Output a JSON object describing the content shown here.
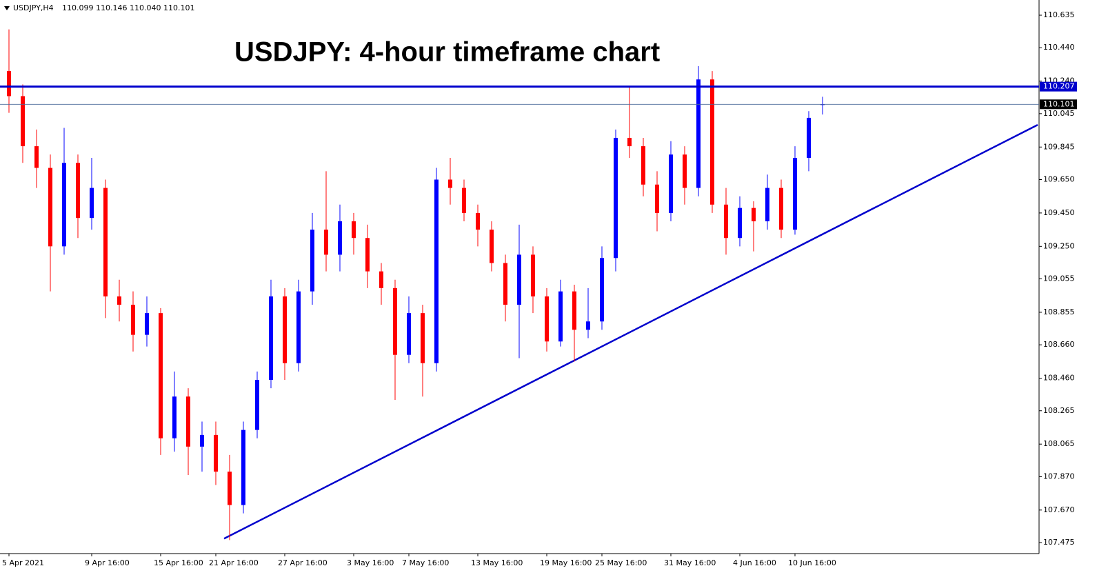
{
  "header": {
    "symbol": "USDJPY,H4",
    "quote": "110.099 110.146 110.040 110.101"
  },
  "chart_data": {
    "type": "candlestick",
    "title": "USDJPY: 4-hour timeframe chart",
    "categories": [
      "5 Apr 2021",
      null,
      null,
      null,
      null,
      null,
      "9 Apr 16:00",
      null,
      null,
      null,
      null,
      "15 Apr 16:00",
      null,
      null,
      null,
      "21 Apr 16:00",
      null,
      null,
      null,
      null,
      "27 Apr 16:00",
      null,
      null,
      null,
      null,
      "3 May 16:00",
      null,
      null,
      null,
      "7 May 16:00",
      null,
      null,
      null,
      null,
      "13 May 16:00",
      null,
      null,
      null,
      null,
      "19 May 16:00",
      null,
      null,
      null,
      "25 May 16:00",
      null,
      null,
      null,
      null,
      "31 May 16:00",
      null,
      null,
      null,
      null,
      "4 Jun 16:00",
      null,
      null,
      null,
      "10 Jun 16:00",
      null,
      null
    ],
    "open": [
      110.3,
      110.15,
      109.85,
      109.72,
      109.25,
      109.75,
      109.42,
      109.6,
      108.95,
      108.9,
      108.72,
      108.85,
      108.1,
      108.35,
      108.05,
      108.12,
      107.9,
      107.7,
      108.15,
      108.45,
      108.95,
      108.55,
      108.98,
      109.35,
      109.2,
      109.4,
      109.3,
      109.1,
      109.0,
      108.6,
      108.85,
      108.55,
      109.65,
      109.6,
      109.45,
      109.35,
      109.15,
      108.9,
      109.2,
      108.95,
      108.68,
      108.98,
      108.75,
      108.8,
      109.18,
      109.9,
      109.85,
      109.62,
      109.45,
      109.8,
      109.6,
      110.25,
      109.5,
      109.3,
      109.48,
      109.4,
      109.6,
      109.35,
      109.78,
      110.099
    ],
    "high": [
      110.55,
      110.22,
      109.95,
      109.8,
      109.96,
      109.8,
      109.78,
      109.65,
      109.05,
      108.98,
      108.95,
      108.88,
      108.5,
      108.4,
      108.2,
      108.2,
      108.0,
      108.2,
      108.5,
      109.05,
      109.0,
      109.05,
      109.45,
      109.7,
      109.5,
      109.45,
      109.38,
      109.15,
      109.05,
      108.95,
      108.9,
      109.72,
      109.78,
      109.65,
      109.5,
      109.4,
      109.2,
      109.38,
      109.25,
      109.0,
      109.05,
      109.02,
      109.0,
      109.25,
      109.95,
      110.207,
      109.9,
      109.7,
      109.88,
      109.85,
      110.33,
      110.3,
      109.6,
      109.55,
      109.52,
      109.68,
      109.65,
      109.85,
      110.06,
      110.146
    ],
    "low": [
      110.05,
      109.75,
      109.6,
      108.98,
      109.2,
      109.3,
      109.35,
      108.82,
      108.8,
      108.62,
      108.65,
      108.0,
      108.02,
      107.88,
      107.9,
      107.82,
      107.49,
      107.65,
      108.1,
      108.4,
      108.45,
      108.5,
      108.9,
      109.1,
      109.1,
      109.2,
      109.0,
      108.9,
      108.33,
      108.55,
      108.35,
      108.5,
      109.5,
      109.4,
      109.25,
      109.1,
      108.8,
      108.58,
      108.85,
      108.62,
      108.65,
      108.56,
      108.7,
      108.75,
      109.1,
      109.78,
      109.55,
      109.34,
      109.4,
      109.5,
      109.55,
      109.45,
      109.2,
      109.25,
      109.22,
      109.35,
      109.3,
      109.32,
      109.7,
      110.04
    ],
    "close": [
      110.15,
      109.85,
      109.72,
      109.25,
      109.75,
      109.42,
      109.6,
      108.95,
      108.9,
      108.72,
      108.85,
      108.1,
      108.35,
      108.05,
      108.12,
      107.9,
      107.7,
      108.15,
      108.45,
      108.95,
      108.55,
      108.98,
      109.35,
      109.2,
      109.4,
      109.3,
      109.1,
      109.0,
      108.6,
      108.85,
      108.55,
      109.65,
      109.6,
      109.45,
      109.35,
      109.15,
      108.9,
      109.2,
      108.95,
      108.68,
      108.98,
      108.75,
      108.8,
      109.18,
      109.9,
      109.85,
      109.62,
      109.45,
      109.8,
      109.6,
      110.25,
      109.5,
      109.3,
      109.48,
      109.4,
      109.6,
      109.35,
      109.78,
      110.02,
      110.101
    ],
    "up_color": "#0000ff",
    "down_color": "#ff0000",
    "ylim": [
      107.409,
      110.726
    ],
    "yticks": [
      110.635,
      {
        "value": 110.44,
        "label": "110.440"
      },
      {
        "value": 110.24,
        "label": "110.240"
      },
      110.045,
      109.845,
      {
        "value": 109.65,
        "label": "109.650"
      },
      {
        "value": 109.45,
        "label": "109.450"
      },
      {
        "value": 109.25,
        "label": "109.250"
      },
      109.055,
      108.855,
      {
        "value": 108.66,
        "label": "108.660"
      },
      {
        "value": 108.46,
        "label": "108.460"
      },
      108.265,
      108.065,
      {
        "value": 107.87,
        "label": "107.870"
      },
      {
        "value": 107.67,
        "label": "107.670"
      },
      107.475
    ],
    "price_lines": [
      {
        "value": 110.207,
        "color": "#0000cc",
        "width": 3,
        "label_bg": "#0000cc"
      },
      {
        "value": 110.101,
        "color": "#4a6a99",
        "width": 0.8,
        "label_bg": "#000000"
      }
    ],
    "trendline": {
      "x": [
        15.6,
        74.6
      ],
      "y": [
        107.499,
        109.978
      ],
      "color": "#0000cc"
    }
  }
}
